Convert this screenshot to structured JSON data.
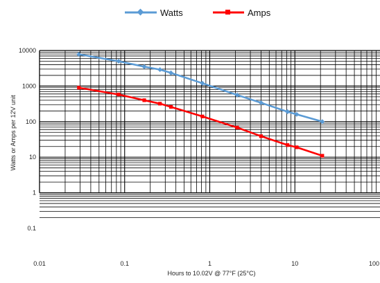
{
  "chart_data": {
    "type": "line",
    "title": "",
    "xlabel": "Hours to 10.02V @ 77°F (25°C)",
    "ylabel": "Watts or Amps per 12V unit",
    "x_scale": "log",
    "y_scale": "log",
    "xlim": [
      0.01,
      100
    ],
    "ylim": [
      0.1,
      10000
    ],
    "grid": true,
    "legend_position": "top",
    "x_tick_labels": [
      "0.01",
      "0.1",
      "1",
      "10",
      "100"
    ],
    "y_tick_labels": [
      "0.1",
      "1",
      "10",
      "100",
      "1000",
      "10000"
    ],
    "series": [
      {
        "name": "Watts",
        "color": "#5b9bd5",
        "marker": "diamond",
        "points": [
          {
            "x": 0.029,
            "y": 7800
          },
          {
            "x": 0.085,
            "y": 5000
          },
          {
            "x": 0.17,
            "y": 3500
          },
          {
            "x": 0.26,
            "y": 2900
          },
          {
            "x": 0.35,
            "y": 2350
          },
          {
            "x": 0.82,
            "y": 1200
          },
          {
            "x": 2.1,
            "y": 560
          },
          {
            "x": 4.0,
            "y": 340
          },
          {
            "x": 8.2,
            "y": 190
          },
          {
            "x": 10.5,
            "y": 160
          },
          {
            "x": 21,
            "y": 100
          }
        ]
      },
      {
        "name": "Amps",
        "color": "#ff0000",
        "marker": "square",
        "points": [
          {
            "x": 0.029,
            "y": 900
          },
          {
            "x": 0.085,
            "y": 580
          },
          {
            "x": 0.17,
            "y": 400
          },
          {
            "x": 0.26,
            "y": 320
          },
          {
            "x": 0.35,
            "y": 260
          },
          {
            "x": 0.82,
            "y": 140
          },
          {
            "x": 2.1,
            "y": 68
          },
          {
            "x": 4.0,
            "y": 39
          },
          {
            "x": 8.2,
            "y": 22
          },
          {
            "x": 10.5,
            "y": 19
          },
          {
            "x": 21,
            "y": 11
          }
        ]
      }
    ]
  }
}
